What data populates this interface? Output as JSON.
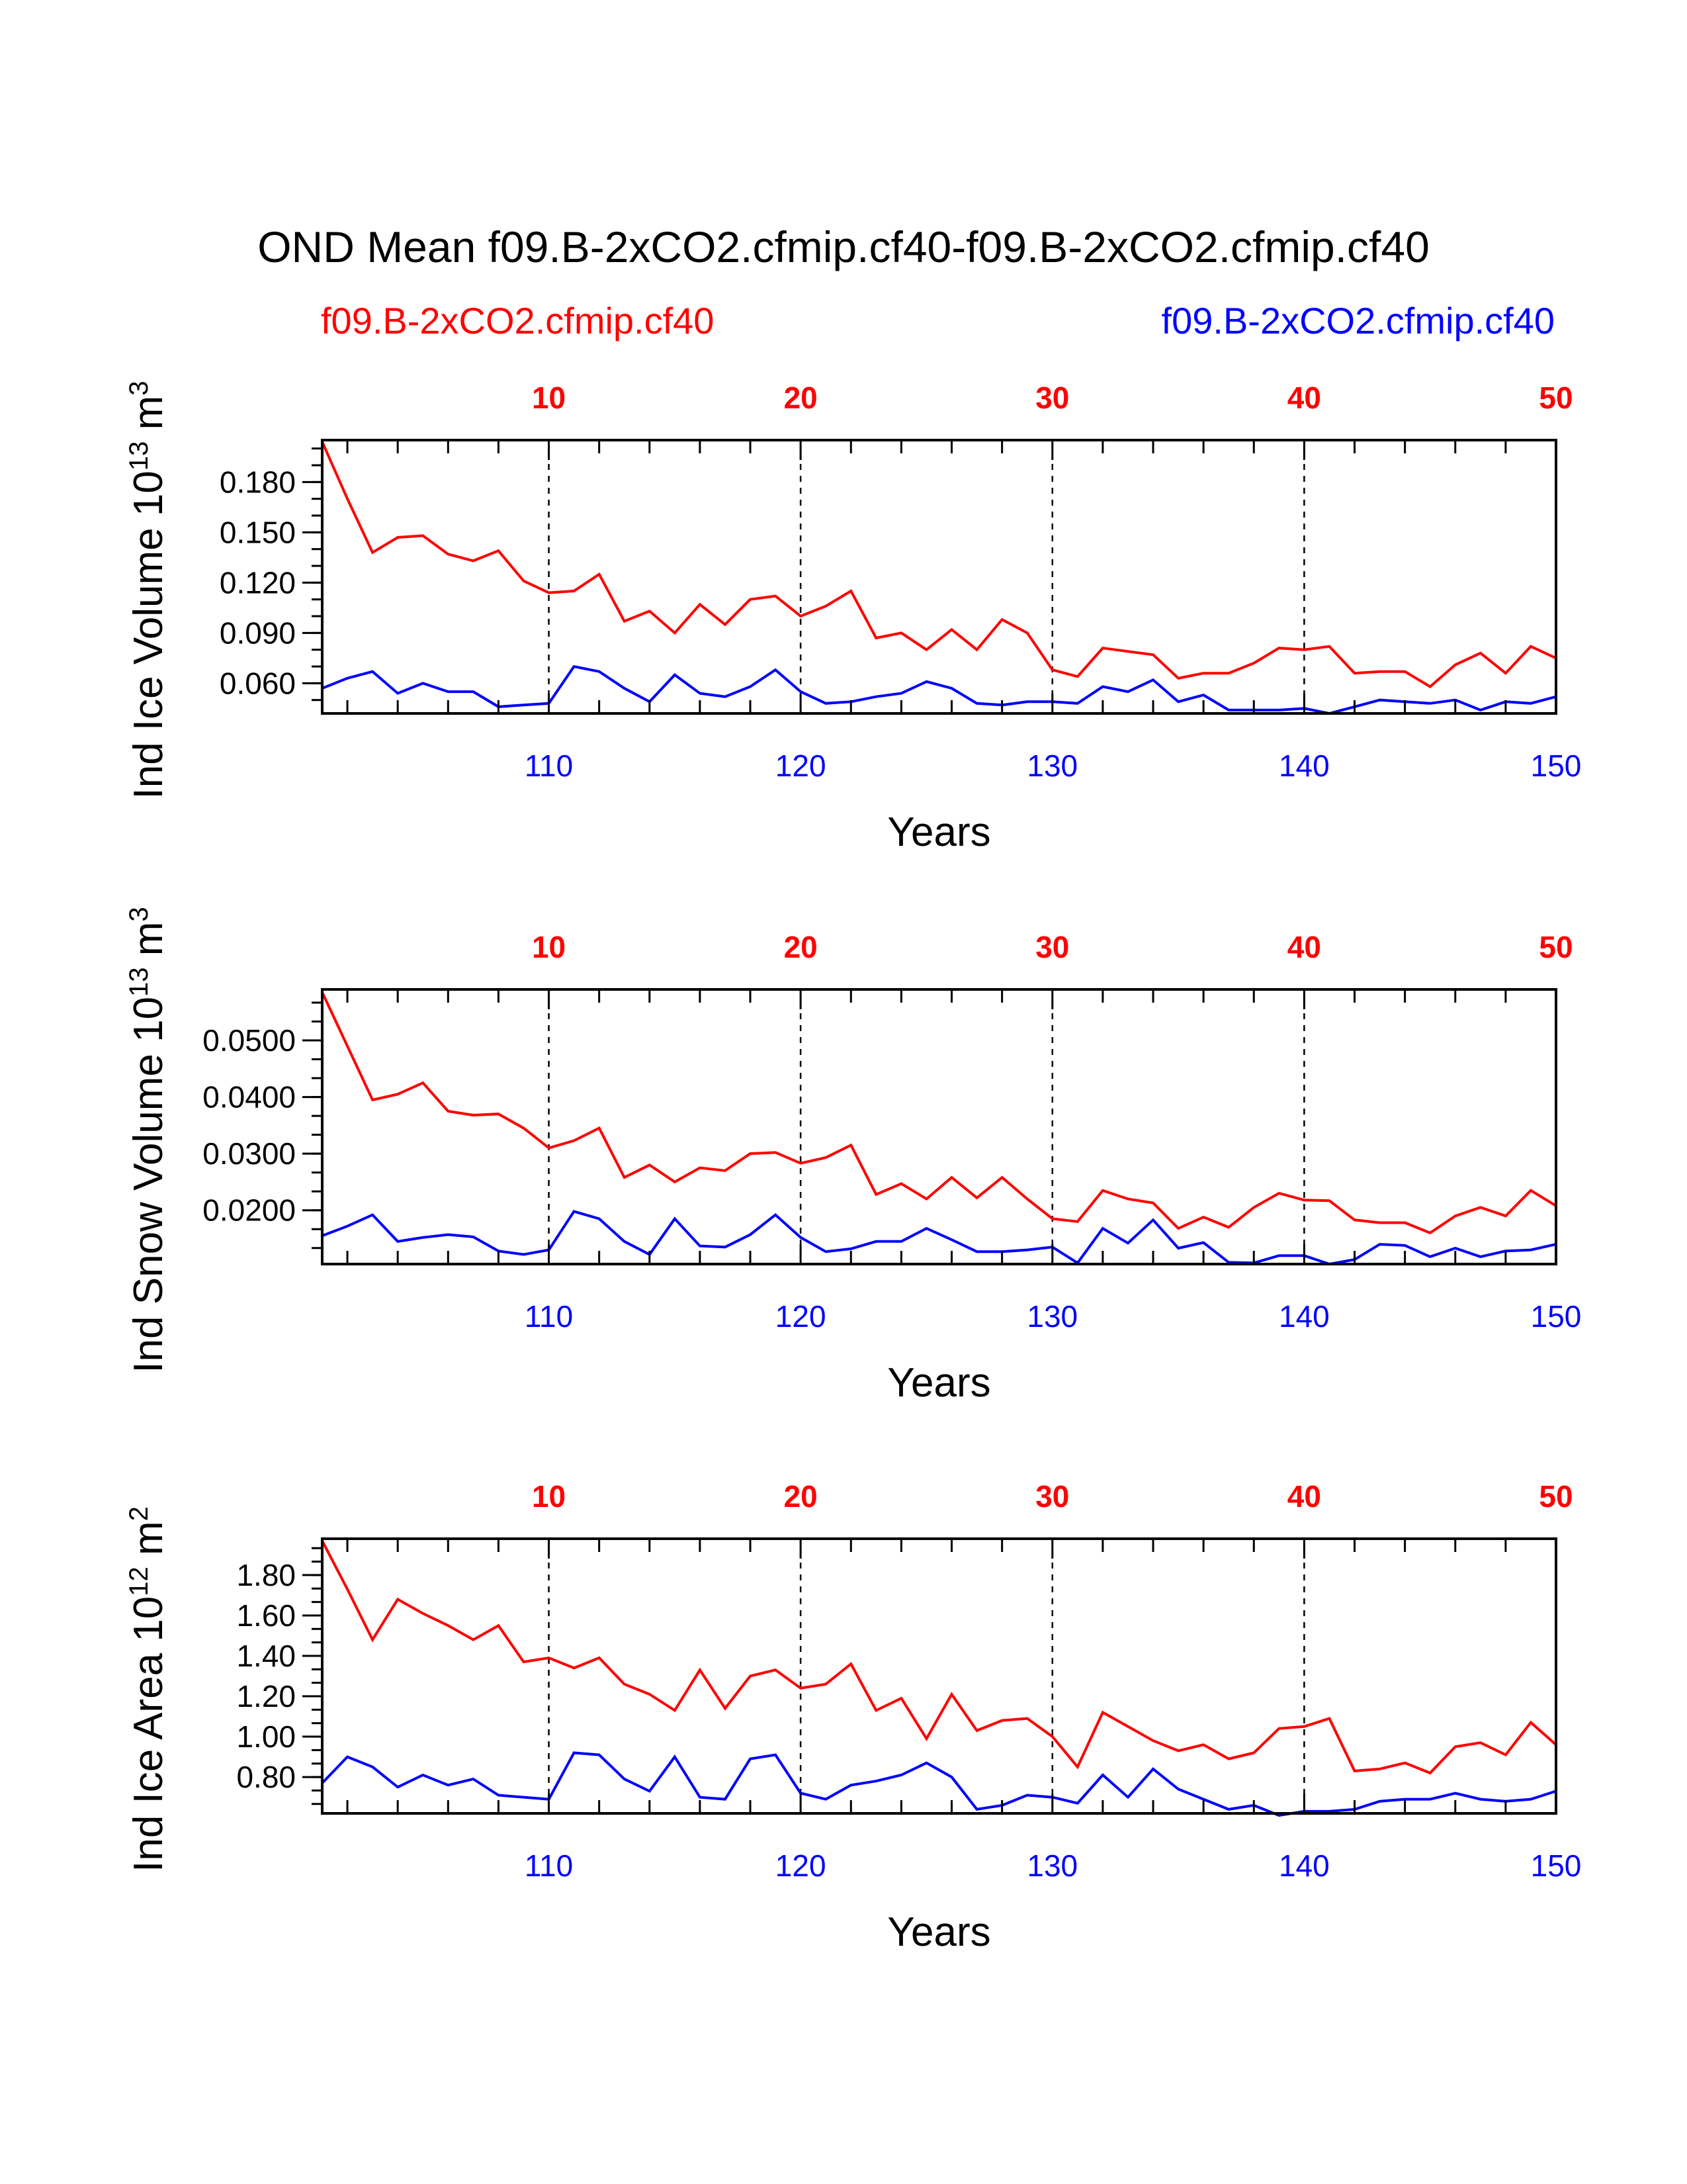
{
  "title": "OND Mean f09.B-2xCO2.cfmip.cf40-f09.B-2xCO2.cfmip.cf40",
  "legend": {
    "red": {
      "label": "f09.B-2xCO2.cfmip.cf40",
      "color": "#ff0000"
    },
    "blue": {
      "label": "f09.B-2xCO2.cfmip.cf40",
      "color": "#0000ff"
    }
  },
  "chart_data": [
    {
      "type": "line",
      "ylabel_main": "Ind Ice Volume 10",
      "ylabel_exp": "13",
      "ylabel_unit": " m",
      "ylabel_unit_exp": "3",
      "xlabel": "Years",
      "ylim": [
        0.042,
        0.205
      ],
      "yticks": [
        0.06,
        0.09,
        0.12,
        0.15,
        0.18
      ],
      "ytick_labels": [
        "0.060",
        "0.090",
        "0.120",
        "0.150",
        "0.180"
      ],
      "top_axis": {
        "xlim": [
          1,
          50
        ],
        "ticks": [
          10,
          20,
          30,
          40,
          50
        ],
        "labels": [
          "10",
          "20",
          "30",
          "40",
          "50"
        ]
      },
      "bottom_axis": {
        "xlim": [
          101,
          150
        ],
        "ticks": [
          110,
          120,
          130,
          140,
          150
        ],
        "labels": [
          "110",
          "120",
          "130",
          "140",
          "150"
        ]
      },
      "series": [
        {
          "name": "f09.B-2xCO2.cfmip.cf40",
          "color": "#ff0000",
          "axis": "top",
          "values": [
            0.204,
            0.17,
            0.138,
            0.147,
            0.148,
            0.137,
            0.133,
            0.139,
            0.121,
            0.114,
            0.115,
            0.125,
            0.097,
            0.103,
            0.09,
            0.107,
            0.095,
            0.11,
            0.112,
            0.1,
            0.106,
            0.115,
            0.087,
            0.09,
            0.08,
            0.092,
            0.08,
            0.098,
            0.09,
            0.068,
            0.064,
            0.081,
            0.079,
            0.077,
            0.063,
            0.066,
            0.066,
            0.072,
            0.081,
            0.08,
            0.082,
            0.066,
            0.067,
            0.067,
            0.058,
            0.071,
            0.078,
            0.066,
            0.082,
            0.075
          ]
        },
        {
          "name": "f09.B-2xCO2.cfmip.cf40",
          "color": "#0000ff",
          "axis": "bottom",
          "values": [
            0.057,
            0.063,
            0.067,
            0.054,
            0.06,
            0.055,
            0.055,
            0.046,
            0.047,
            0.048,
            0.07,
            0.067,
            0.057,
            0.049,
            0.065,
            0.054,
            0.052,
            0.058,
            0.068,
            0.055,
            0.048,
            0.049,
            0.052,
            0.054,
            0.061,
            0.057,
            0.048,
            0.047,
            0.049,
            0.049,
            0.048,
            0.058,
            0.055,
            0.062,
            0.049,
            0.053,
            0.044,
            0.044,
            0.044,
            0.045,
            0.042,
            0.046,
            0.05,
            0.049,
            0.048,
            0.05,
            0.044,
            0.049,
            0.048,
            0.052
          ]
        }
      ]
    },
    {
      "type": "line",
      "ylabel_main": "Ind Snow Volume 10",
      "ylabel_exp": "13",
      "ylabel_unit": " m",
      "ylabel_unit_exp": "3",
      "xlabel": "Years",
      "ylim": [
        0.0105,
        0.059
      ],
      "yticks": [
        0.02,
        0.03,
        0.04,
        0.05
      ],
      "ytick_labels": [
        "0.0200",
        "0.0300",
        "0.0400",
        "0.0500"
      ],
      "top_axis": {
        "xlim": [
          1,
          50
        ],
        "ticks": [
          10,
          20,
          30,
          40,
          50
        ],
        "labels": [
          "10",
          "20",
          "30",
          "40",
          "50"
        ]
      },
      "bottom_axis": {
        "xlim": [
          101,
          150
        ],
        "ticks": [
          110,
          120,
          130,
          140,
          150
        ],
        "labels": [
          "110",
          "120",
          "130",
          "140",
          "150"
        ]
      },
      "series": [
        {
          "name": "f09.B-2xCO2.cfmip.cf40",
          "color": "#ff0000",
          "axis": "top",
          "values": [
            0.0585,
            0.049,
            0.0395,
            0.0405,
            0.0425,
            0.0375,
            0.0368,
            0.037,
            0.0345,
            0.031,
            0.0323,
            0.0345,
            0.0258,
            0.028,
            0.025,
            0.0275,
            0.027,
            0.03,
            0.0302,
            0.0283,
            0.0293,
            0.0315,
            0.0228,
            0.0247,
            0.022,
            0.0258,
            0.0222,
            0.0258,
            0.022,
            0.0185,
            0.018,
            0.0235,
            0.022,
            0.0213,
            0.0168,
            0.0188,
            0.017,
            0.0205,
            0.023,
            0.0218,
            0.0217,
            0.0183,
            0.0178,
            0.0178,
            0.016,
            0.019,
            0.0205,
            0.019,
            0.0235,
            0.0208
          ]
        },
        {
          "name": "f09.B-2xCO2.cfmip.cf40",
          "color": "#0000ff",
          "axis": "bottom",
          "values": [
            0.0155,
            0.0172,
            0.0192,
            0.0145,
            0.0152,
            0.0157,
            0.0153,
            0.0128,
            0.0122,
            0.013,
            0.0198,
            0.0185,
            0.0145,
            0.0122,
            0.0185,
            0.0137,
            0.0135,
            0.0157,
            0.0192,
            0.0152,
            0.0127,
            0.0132,
            0.0145,
            0.0145,
            0.0168,
            0.0148,
            0.0127,
            0.0127,
            0.013,
            0.0135,
            0.0107,
            0.0168,
            0.0142,
            0.0183,
            0.0133,
            0.0143,
            0.0108,
            0.0107,
            0.012,
            0.012,
            0.0105,
            0.0113,
            0.014,
            0.0138,
            0.0118,
            0.0133,
            0.0118,
            0.0128,
            0.013,
            0.014
          ]
        }
      ]
    },
    {
      "type": "line",
      "ylabel_main": "Ind Ice Area 10",
      "ylabel_exp": "12",
      "ylabel_unit": " m",
      "ylabel_unit_exp": "2",
      "xlabel": "Years",
      "ylim": [
        0.62,
        1.98
      ],
      "yticks": [
        0.8,
        1.0,
        1.2,
        1.4,
        1.6,
        1.8
      ],
      "ytick_labels": [
        "0.80",
        "1.00",
        "1.20",
        "1.40",
        "1.60",
        "1.80"
      ],
      "top_axis": {
        "xlim": [
          1,
          50
        ],
        "ticks": [
          10,
          20,
          30,
          40,
          50
        ],
        "labels": [
          "10",
          "20",
          "30",
          "40",
          "50"
        ]
      },
      "bottom_axis": {
        "xlim": [
          101,
          150
        ],
        "ticks": [
          110,
          120,
          130,
          140,
          150
        ],
        "labels": [
          "110",
          "120",
          "130",
          "140",
          "150"
        ]
      },
      "series": [
        {
          "name": "f09.B-2xCO2.cfmip.cf40",
          "color": "#ff0000",
          "axis": "top",
          "values": [
            1.97,
            1.73,
            1.48,
            1.68,
            1.61,
            1.55,
            1.48,
            1.55,
            1.37,
            1.39,
            1.34,
            1.39,
            1.26,
            1.21,
            1.13,
            1.33,
            1.14,
            1.3,
            1.33,
            1.24,
            1.26,
            1.36,
            1.13,
            1.19,
            0.99,
            1.21,
            1.03,
            1.08,
            1.09,
            1.0,
            0.85,
            1.12,
            1.05,
            0.98,
            0.93,
            0.96,
            0.89,
            0.92,
            1.04,
            1.05,
            1.09,
            0.83,
            0.84,
            0.87,
            0.82,
            0.95,
            0.97,
            0.91,
            1.07,
            0.96
          ]
        },
        {
          "name": "f09.B-2xCO2.cfmip.cf40",
          "color": "#0000ff",
          "axis": "bottom",
          "values": [
            0.77,
            0.9,
            0.85,
            0.75,
            0.81,
            0.76,
            0.79,
            0.71,
            0.7,
            0.69,
            0.92,
            0.91,
            0.79,
            0.73,
            0.9,
            0.7,
            0.69,
            0.89,
            0.91,
            0.72,
            0.69,
            0.76,
            0.78,
            0.81,
            0.87,
            0.8,
            0.64,
            0.66,
            0.71,
            0.7,
            0.67,
            0.81,
            0.7,
            0.84,
            0.74,
            0.69,
            0.64,
            0.66,
            0.61,
            0.63,
            0.63,
            0.64,
            0.68,
            0.69,
            0.69,
            0.72,
            0.69,
            0.68,
            0.69,
            0.73
          ]
        }
      ]
    }
  ]
}
